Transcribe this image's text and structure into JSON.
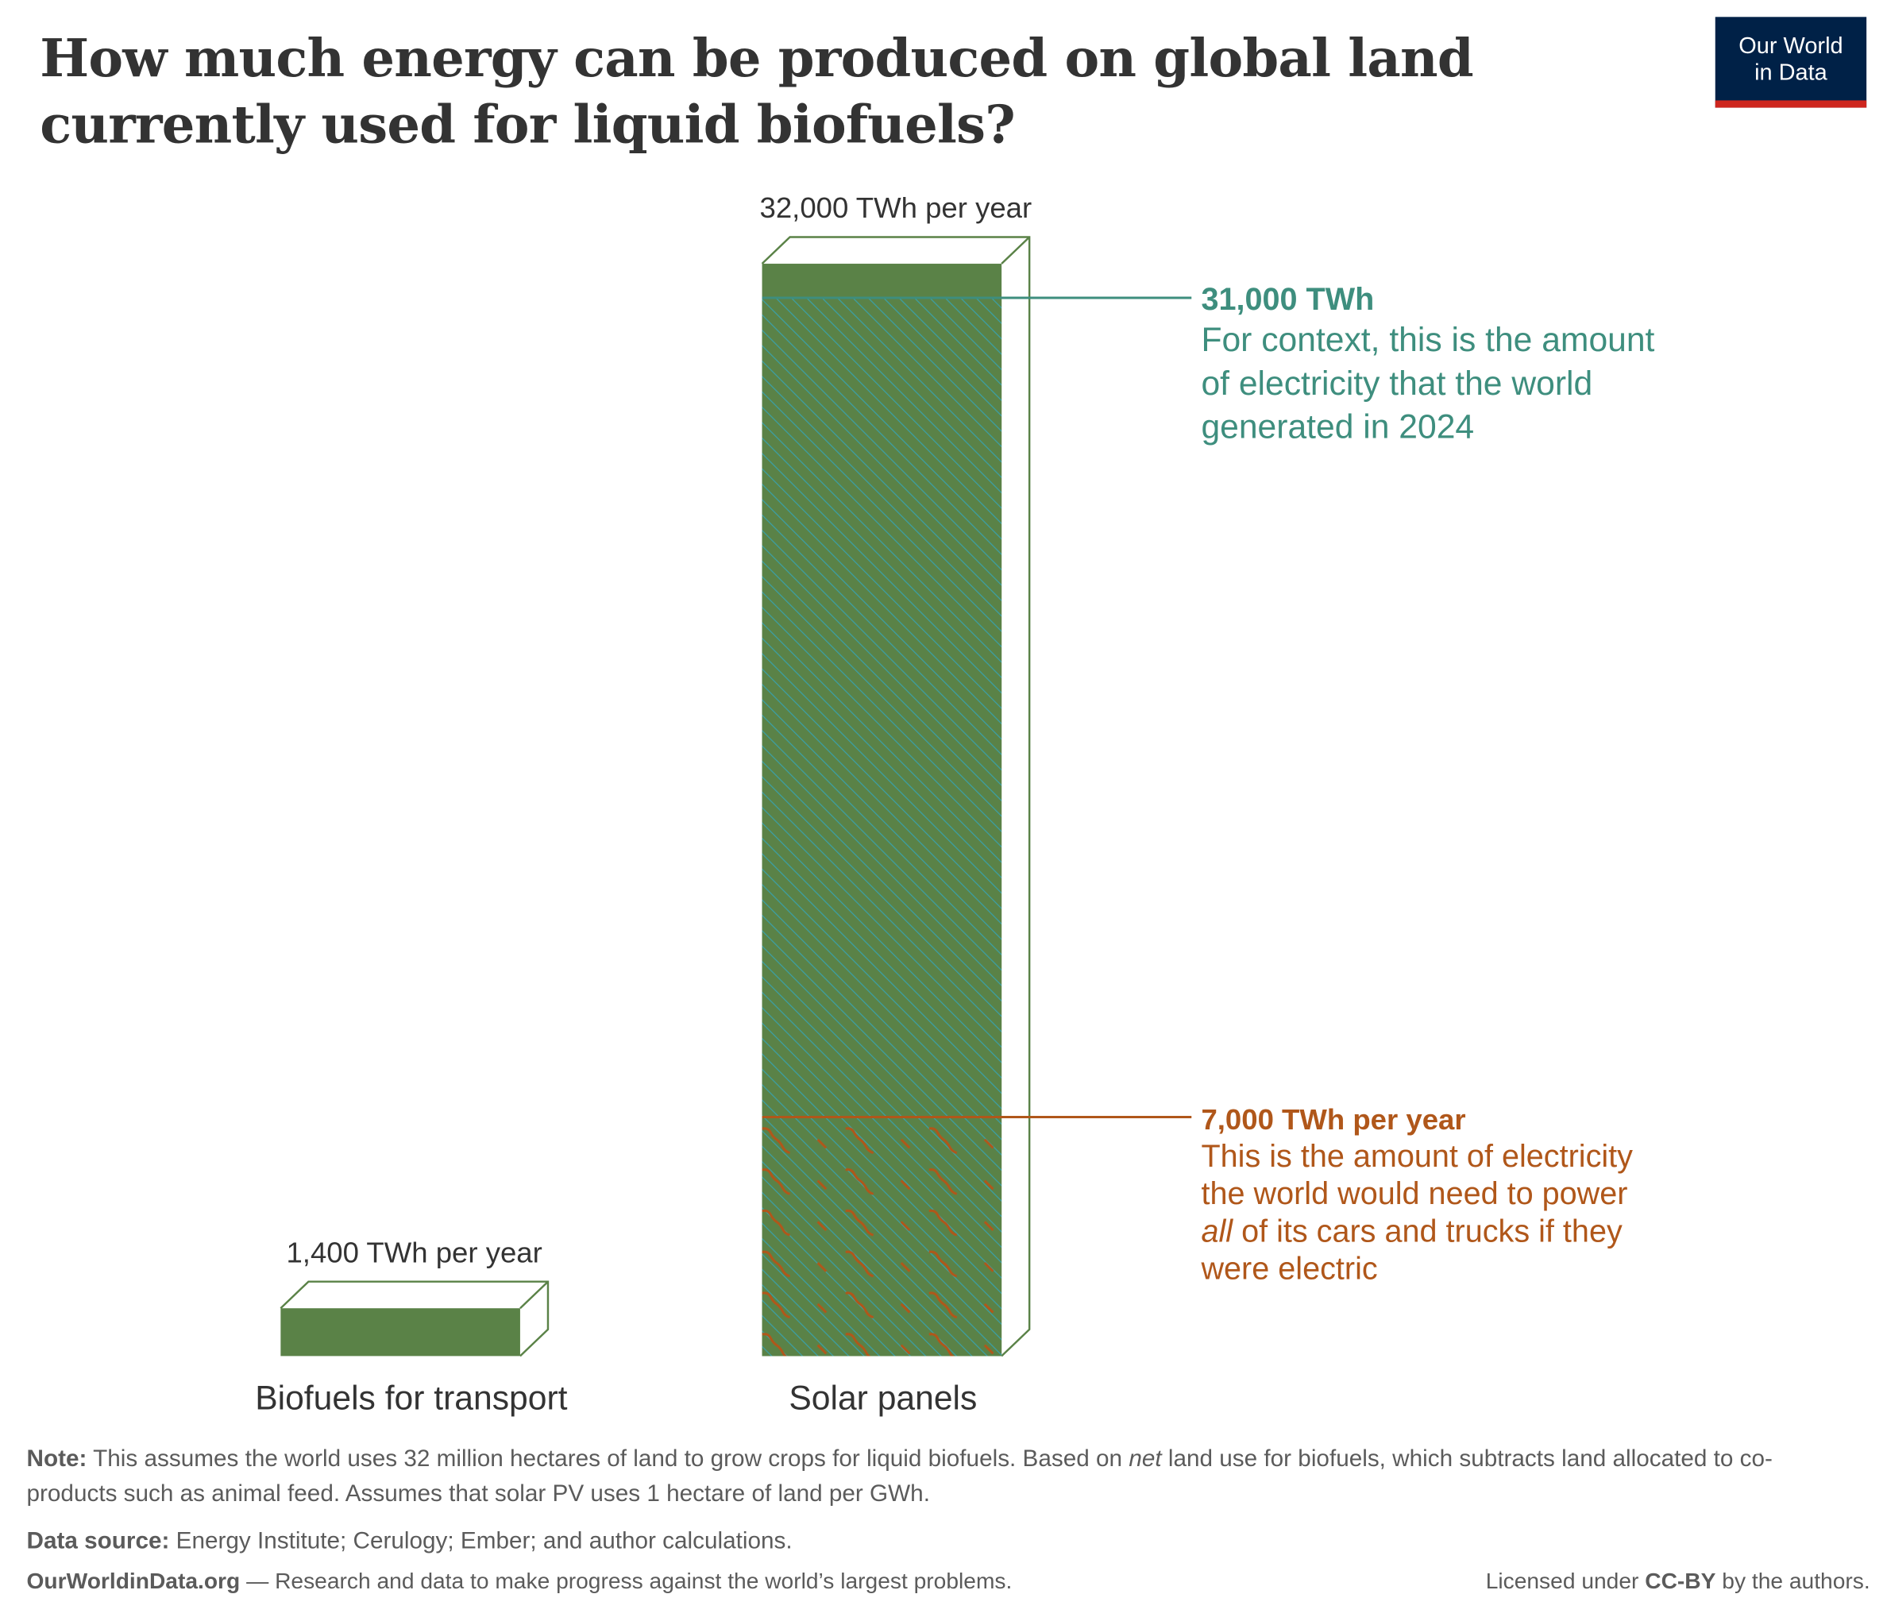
{
  "title": "How much energy can be produced on global land currently used for liquid biofuels?",
  "logo": {
    "line1": "Our World",
    "line2": "in Data"
  },
  "chart_data": {
    "type": "bar",
    "categories": [
      "Biofuels for transport",
      "Solar panels"
    ],
    "values": [
      1400,
      32000
    ],
    "unit": "TWh per year",
    "value_labels": [
      "1,400 TWh per year",
      "32,000 TWh per year"
    ],
    "ylim": [
      0,
      32000
    ],
    "annotations": [
      {
        "value": 31000,
        "title": "31,000 TWh",
        "lines": [
          "For context, this is the amount",
          "of electricity that the world",
          "generated in 2024"
        ],
        "color": "#3e8e7e"
      },
      {
        "value": 7000,
        "title": "7,000 TWh per year",
        "lines": [
          "This is the amount of electricity",
          "the world would need to power",
          "all",
          " of its cars and trucks if they",
          "were electric"
        ],
        "color": "#b0571a"
      }
    ],
    "colors": {
      "bar": "#5a8247",
      "hatch": "#3aa0a8",
      "outline": "#5a8247"
    }
  },
  "note": {
    "label": "Note:",
    "text1": " This assumes the world uses 32 million hectares of land to grow crops for liquid biofuels. Based on ",
    "net": "net",
    "text2": " land use for biofuels, which subtracts land allocated to co-products such as animal feed. Assumes that solar PV uses 1 hectare of land per GWh."
  },
  "source": {
    "label": "Data source:",
    "text": " Energy Institute; Cerulogy; Ember; and author calculations."
  },
  "footer": {
    "site": "OurWorldinData.org",
    "tagline": " — Research and data to make progress against the world’s largest problems.",
    "license_pre": "Licensed under ",
    "license": "CC-BY",
    "license_post": " by the authors."
  }
}
